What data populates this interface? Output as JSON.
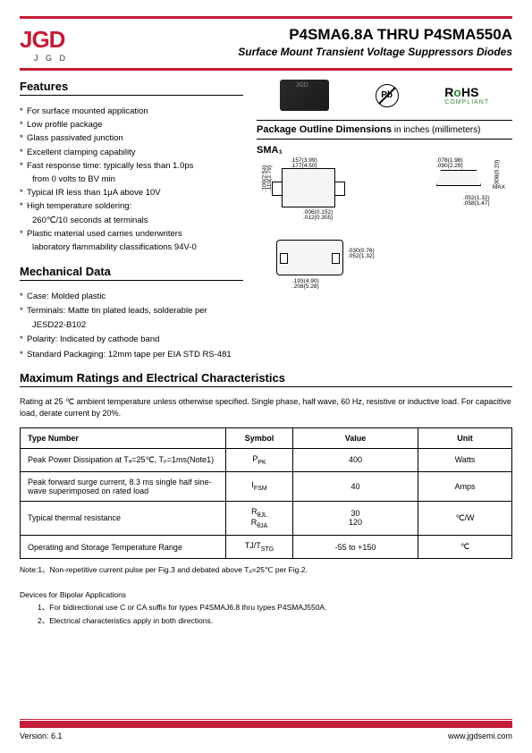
{
  "header": {
    "logo_text": "JGD",
    "logo_sub": "J  G  D",
    "title": "P4SMA6.8A THRU P4SMA550A",
    "subtitle": "Surface Mount Transient Voltage Suppressors Diodes"
  },
  "features": {
    "heading": "Features",
    "items": [
      "For surface mounted application",
      "Low profile package",
      "Glass passivated junction",
      "Excellent clamping capability",
      "Fast response time: typically less than 1.0ps",
      "from 0 volts to BV min",
      "Typical IR less than 1μA above 10V",
      "High temperature soldering:",
      "260℃/10 seconds at terminals",
      "Plastic material used carries underwriters",
      "laboratory flammability classifications 94V-0"
    ],
    "sub_indices": [
      5,
      8,
      10
    ]
  },
  "badges": {
    "pb": "Pb",
    "rohs": "RoHS",
    "rohs_sub": "COMPLIANT"
  },
  "package": {
    "heading": "Package Outline Dimensions",
    "unit": " in inches (millimeters)",
    "label": "SMA₁",
    "dims": {
      "d1": ".157(3.99)",
      "d2": ".177(4.50)",
      "d3": ".100(2.54)",
      "d4": ".110(2.79)",
      "d5": ".006(0.152)",
      "d6": ".012(0.305)",
      "d7": ".078(1.98)",
      "d8": ".090(2.29)",
      "d9": ".008(0.20)",
      "d10": "MAX",
      "d11": ".052(1.32)",
      "d12": ".058(1.47)",
      "d13": ".030(0.76)",
      "d14": ".052(1.32)",
      "d15": ".193(4.90)",
      "d16": ".208(5.28)"
    }
  },
  "mechanical": {
    "heading": "Mechanical Data",
    "items": [
      "Case: Molded plastic",
      "Terminals: Matte tin plated leads, solderable per",
      "JESD22-B102",
      "Polarity: Indicated by cathode band",
      "Standard Packaging: 12mm tape per EIA STD RS-481"
    ],
    "sub_indices": [
      2
    ]
  },
  "ratings": {
    "heading": "Maximum Ratings and Electrical Characteristics",
    "note": "Rating at 25 ℃ ambient temperature unless otherwise specified. Single phase, half wave, 60 Hz, resistive or inductive load. For capacitive load, derate current by 20%.",
    "columns": [
      "Type Number",
      "Symbol",
      "Value",
      "Unit"
    ],
    "rows": [
      {
        "type": "Peak Power Dissipation at Tₐ=25℃, Tₚ=1ms(Note1)",
        "symbol": "P",
        "symbol_sub": "PK",
        "value": "400",
        "unit": "Watts"
      },
      {
        "type": "Peak forward surge current, 8.3 ms single half sine-wave superimposed on rated load",
        "symbol": "I",
        "symbol_sub": "FSM",
        "value": "40",
        "unit": "Amps"
      },
      {
        "type": "Typical thermal resistance",
        "symbol": "R\nR",
        "symbol_sub": "θJL θJA",
        "value": "30\n120",
        "unit": "℃/W"
      },
      {
        "type": "Operating and Storage Temperature Range",
        "symbol": "TJ/T",
        "symbol_sub": "STG",
        "value": "-55 to +150",
        "unit": "℃"
      }
    ]
  },
  "footnotes": {
    "note1": "Note:1、Non-repetitive current pulse per Fig.3 and debated above Tₐ=25℃ per Fig.2.",
    "bipolar_heading": "Devices for Bipolar Applications",
    "bipolar1": "1、For bidirectional use C or CA suffix for types P4SMAJ6.8 thru types P4SMAJ550A.",
    "bipolar2": "2、Electrical characteristics apply in both directions."
  },
  "footer": {
    "version": "Version: 6.1",
    "url": "www.jgdsemi.com"
  }
}
